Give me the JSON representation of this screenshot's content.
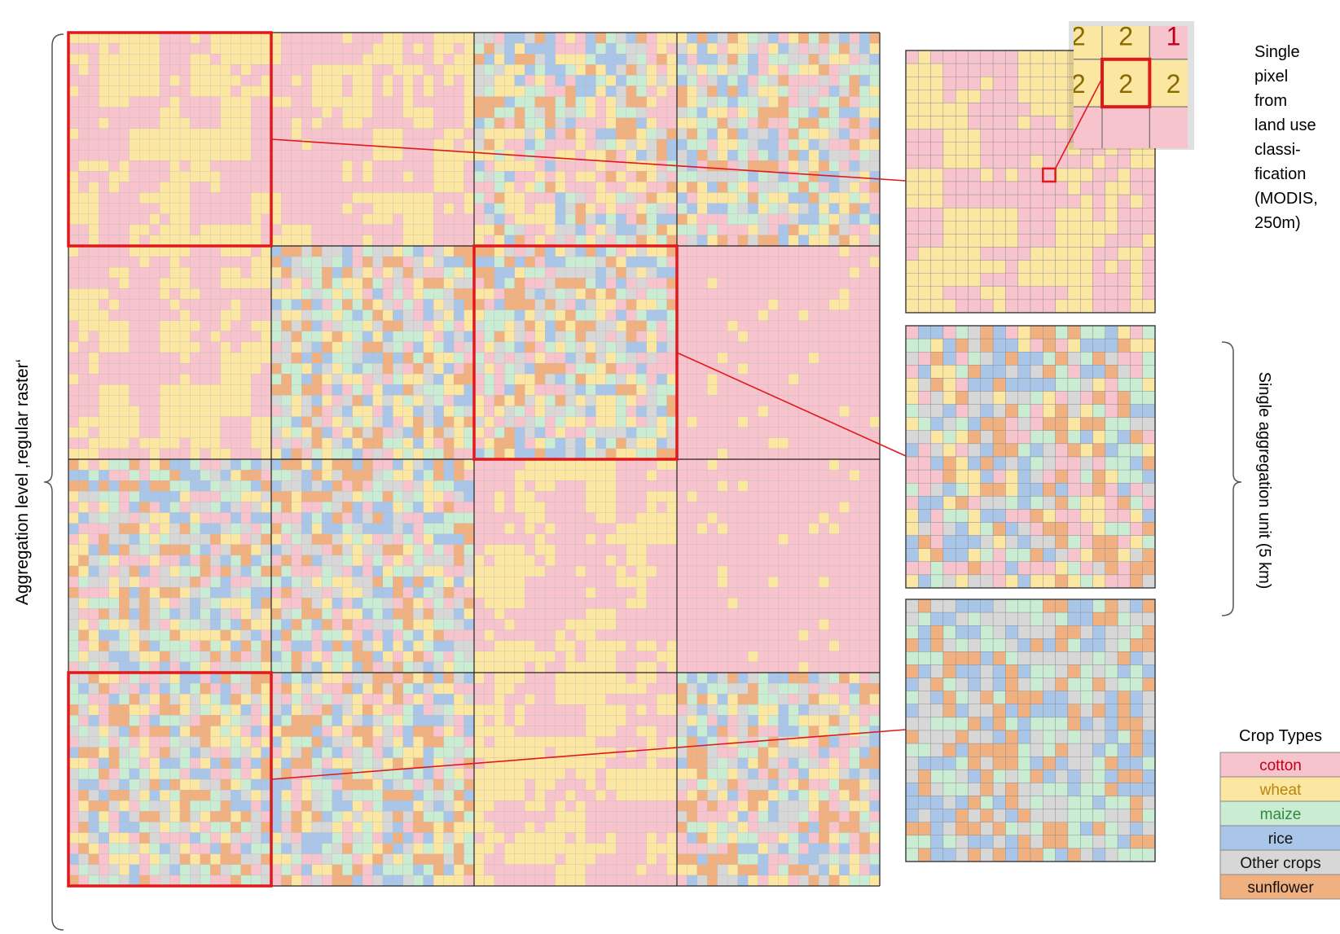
{
  "title": "",
  "left_axis_label": "Aggregation level ‚regular raster‘",
  "right_bracket_label": "Single aggregation unit (5 km)",
  "pixel_callout": {
    "lines": [
      "Single",
      "pixel",
      "from",
      "land use",
      "classi-",
      "fication",
      "(MODIS,",
      "250m)"
    ],
    "zoom_values": [
      "2",
      "2",
      "1",
      "2",
      "2",
      "2"
    ]
  },
  "legend": {
    "title": "Crop Types",
    "items": [
      {
        "code": 1,
        "label": "cotton",
        "fill": "#f7c3cc",
        "text": "#c0001b"
      },
      {
        "code": 2,
        "label": "wheat",
        "fill": "#fbe6a2",
        "text": "#b8860b"
      },
      {
        "code": 3,
        "label": "maize",
        "fill": "#c9ecd2",
        "text": "#2e8b3e"
      },
      {
        "code": 4,
        "label": "rice",
        "fill": "#a9c6e8",
        "text": "#111111"
      },
      {
        "code": 5,
        "label": "Other crops",
        "fill": "#d7d7d7",
        "text": "#111111"
      },
      {
        "code": 6,
        "label": "sunflower",
        "fill": "#f1b07f",
        "text": "#111111"
      }
    ]
  },
  "colors": {
    "highlight": "#e0191b",
    "grid_line": "#222222",
    "cell_border": "#999999"
  },
  "map": {
    "blocks_x": 4,
    "blocks_y": 4,
    "cells_per_block": 20,
    "highlighted_blocks": [
      [
        0,
        0
      ],
      [
        2,
        1
      ],
      [
        0,
        3
      ]
    ],
    "block_regimes": [
      [
        "wheat-cotton",
        "wheat-cotton",
        "mixed-46",
        "mixed-all"
      ],
      [
        "wheat-cotton",
        "mixed-all",
        "mixed-all",
        "cotton"
      ],
      [
        "mixed-all",
        "mixed-all",
        "wheat-cotton",
        "cotton"
      ],
      [
        "mixed-all",
        "mixed-all",
        "wheat-cotton",
        "mixed-all"
      ]
    ]
  },
  "detail_panels": [
    {
      "name": "detail-panel-wheat-cotton",
      "regime": "wheat-cotton"
    },
    {
      "name": "detail-panel-mixed",
      "regime": "mixed-all"
    },
    {
      "name": "detail-panel-mixed-546",
      "regime": "mixed-546"
    }
  ]
}
